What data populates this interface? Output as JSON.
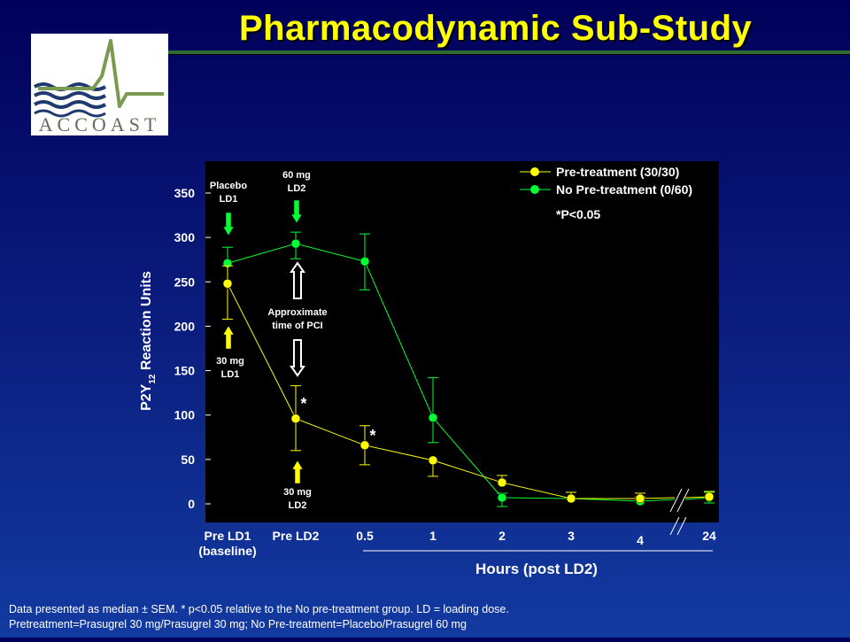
{
  "slide": {
    "title": "Pharmacodynamic Sub-Study",
    "logo_text": "ACCOAST",
    "footnote_line1": "Data presented as median ± SEM.  * p<0.05 relative to the No pre-treatment group. LD = loading dose.",
    "footnote_line2": "Pretreatment=Prasugrel 30 mg/Prasugrel 30 mg; No Pre-treatment=Placebo/Prasugrel 60 mg"
  },
  "colors": {
    "background": "#0a1a7a",
    "title": "#ffff00",
    "pretreatment": "#ffff00",
    "no_pretreatment": "#00ff33",
    "plot_bg": "#000000",
    "logo_green": "#7a9a50",
    "logo_blue": "#1f3a6e"
  },
  "chart_data": {
    "type": "line",
    "ylabel_main": "P2Y",
    "ylabel_sub": "12",
    "ylabel_rest": " Reaction Units",
    "xlabel": "Hours (post LD2)",
    "ylim": [
      0,
      350
    ],
    "yticks": [
      0,
      50,
      100,
      150,
      200,
      250,
      300,
      350
    ],
    "x_categories": [
      "Pre LD1\n(baseline)",
      "Pre LD2",
      "0.5",
      "1",
      "2",
      "3",
      "4",
      "24"
    ],
    "x_tick_lines": [
      [
        "Pre LD1",
        "(baseline)"
      ],
      [
        "Pre LD2"
      ],
      [
        "0.5"
      ],
      [
        "1"
      ],
      [
        "2"
      ],
      [
        "3"
      ],
      [
        "4"
      ],
      [
        "24"
      ]
    ],
    "axis_break_between": [
      "4",
      "24"
    ],
    "significance_note": "*P<0.05",
    "series": [
      {
        "name": "Pre-treatment (30/30)",
        "color": "#ffff00",
        "values": [
          248,
          96,
          66,
          49,
          24,
          6,
          6,
          8
        ],
        "err_up": [
          20,
          37,
          22,
          0,
          8,
          7,
          6,
          6
        ],
        "err_down": [
          40,
          36,
          22,
          18,
          0,
          0,
          0,
          0
        ]
      },
      {
        "name": "No Pre-treatment (0/60)",
        "color": "#00ff33",
        "values": [
          271,
          293,
          273,
          97,
          7,
          6,
          3,
          7
        ],
        "err_up": [
          18,
          13,
          31,
          45,
          5,
          7,
          5,
          6
        ],
        "err_down": [
          0,
          17,
          32,
          28,
          10,
          0,
          0,
          6
        ]
      }
    ],
    "asterisks": [
      {
        "category": "Pre LD2",
        "label": "*"
      },
      {
        "category": "0.5",
        "label": "*"
      }
    ],
    "annotations": {
      "placebo_ld1": [
        "Placebo",
        "LD1"
      ],
      "mg60_ld2": [
        "60 mg",
        "LD2"
      ],
      "approx_pci": [
        "Approximate",
        "time of PCI"
      ],
      "mg30_ld1": [
        "30 mg",
        "LD1"
      ],
      "mg30_ld2": [
        "30 mg",
        "LD2"
      ]
    }
  }
}
